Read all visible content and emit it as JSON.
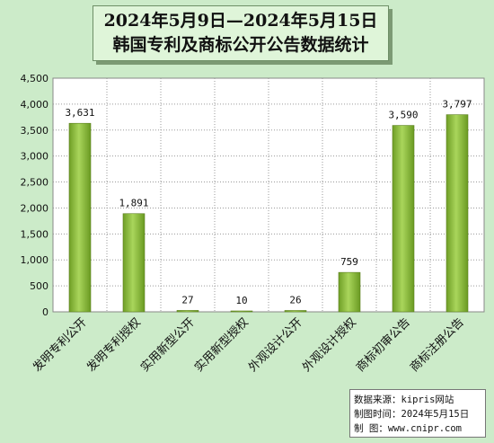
{
  "title": {
    "line1": "2024年5月9日—2024年5月15日",
    "line2": "韩国专利及商标公开公告数据统计"
  },
  "chart_data": {
    "type": "bar",
    "categories": [
      "发明专利公开",
      "发明专利授权",
      "实用新型公开",
      "实用新型授权",
      "外观设计公开",
      "外观设计授权",
      "商标初审公告",
      "商标注册公告"
    ],
    "values": [
      3631,
      1891,
      27,
      10,
      26,
      759,
      3590,
      3797
    ],
    "value_labels": [
      "3,631",
      "1,891",
      "27",
      "10",
      "26",
      "759",
      "3,590",
      "3,797"
    ],
    "yticks": [
      "0",
      "500",
      "1,000",
      "1,500",
      "2,000",
      "2,500",
      "3,000",
      "3,500",
      "4,000",
      "4,500"
    ],
    "ylim": [
      0,
      4500
    ],
    "ystep": 500,
    "grid": true,
    "bar_color": "#8bbf3a",
    "plot_background": "#ffffff"
  },
  "source": {
    "line1": "数据来源：kipris网站",
    "line2": "制图时间：2024年5月15日",
    "line3": "制    图：www.cnipr.com"
  }
}
